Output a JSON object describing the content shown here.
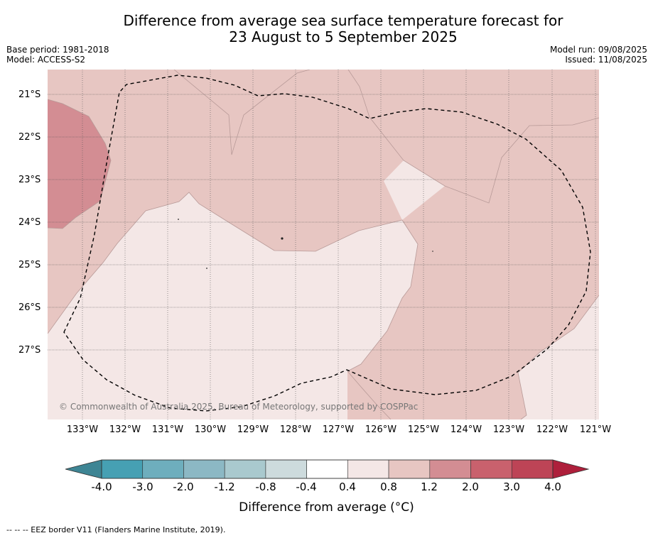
{
  "title": {
    "line1": "Difference from average sea surface temperature forecast for",
    "line2": "23 August to 5 September 2025"
  },
  "meta_left": {
    "base_period": "Base period: 1981-2018",
    "model": "Model: ACCESS-S2"
  },
  "meta_right": {
    "model_run": "Model run: 09/08/2025",
    "issued": "Issued: 11/08/2025"
  },
  "map": {
    "latitude_labels": [
      "21°S",
      "22°S",
      "23°S",
      "24°S",
      "25°S",
      "26°S",
      "27°S"
    ],
    "longitude_labels": [
      "133°W",
      "132°W",
      "131°W",
      "130°W",
      "129°W",
      "128°W",
      "127°W",
      "126°W",
      "125°W",
      "124°W",
      "123°W",
      "122°W",
      "121°W"
    ],
    "copyright": "© Commonwealth of Australia 2025, Bureau of Meteorology, supported by COSPPac",
    "colors": {
      "range_0p4_0p8": "#f4e7e6",
      "range_0p8_1p2": "#e7c6c2",
      "range_1p2_2p0": "#d38d93",
      "gridline": "#444444",
      "eez_border": "#000000"
    }
  },
  "colorbar": {
    "ticks": [
      "-4.0",
      "-3.0",
      "-2.0",
      "-1.2",
      "-0.8",
      "-0.4",
      "0.4",
      "0.8",
      "1.2",
      "2.0",
      "3.0",
      "4.0"
    ],
    "colors": [
      "#3e8594",
      "#46a0b3",
      "#6eaebd",
      "#8cb8c4",
      "#a9c9ce",
      "#cddbdd",
      "#ffffff",
      "#f4e7e6",
      "#e7c6c2",
      "#d38d93",
      "#c9616d",
      "#bd4456",
      "#ae1f3b"
    ],
    "label": "Difference from average (°C)"
  },
  "footnote": "--  --  -- EEZ border V11 (Flanders Marine Institute, 2019)."
}
